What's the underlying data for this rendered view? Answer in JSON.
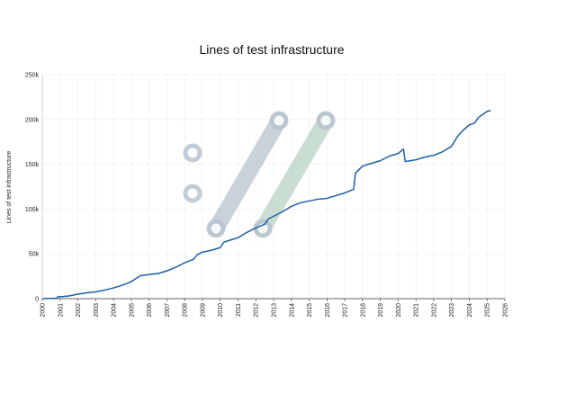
{
  "chart_data": {
    "type": "line",
    "title": "Lines of test infrastructure",
    "xlabel": "",
    "ylabel": "Lines of test infrastructure",
    "xlim": [
      2000,
      2026
    ],
    "ylim": [
      0,
      250000
    ],
    "grid": true,
    "x_ticks": [
      "2000",
      "2001",
      "2002",
      "2003",
      "2004",
      "2005",
      "2006",
      "2007",
      "2008",
      "2009",
      "2010",
      "2011",
      "2012",
      "2013",
      "2014",
      "2015",
      "2016",
      "2017",
      "2018",
      "2019",
      "2020",
      "2021",
      "2022",
      "2023",
      "2024",
      "2025",
      "2026"
    ],
    "y_ticks": [
      {
        "value": 0,
        "label": "0"
      },
      {
        "value": 50000,
        "label": "50k"
      },
      {
        "value": 100000,
        "label": "100k"
      },
      {
        "value": 150000,
        "label": "150k"
      },
      {
        "value": 200000,
        "label": "200k"
      },
      {
        "value": 250000,
        "label": "250k"
      }
    ],
    "series": [
      {
        "color": "#1f5fa8",
        "points": [
          [
            2000.0,
            0
          ],
          [
            2000.8,
            500
          ],
          [
            2000.9,
            2500
          ],
          [
            2001.0,
            2000
          ],
          [
            2001.5,
            3000
          ],
          [
            2002.0,
            5000
          ],
          [
            2002.5,
            6500
          ],
          [
            2003.0,
            7500
          ],
          [
            2003.5,
            9500
          ],
          [
            2004.0,
            12000
          ],
          [
            2004.5,
            15000
          ],
          [
            2005.0,
            19000
          ],
          [
            2005.3,
            23000
          ],
          [
            2005.5,
            25500
          ],
          [
            2006.0,
            27000
          ],
          [
            2006.5,
            28000
          ],
          [
            2007.0,
            31000
          ],
          [
            2007.5,
            35000
          ],
          [
            2008.0,
            40000
          ],
          [
            2008.5,
            44000
          ],
          [
            2008.7,
            49000
          ],
          [
            2009.0,
            52000
          ],
          [
            2009.5,
            54000
          ],
          [
            2010.0,
            57000
          ],
          [
            2010.2,
            63000
          ],
          [
            2010.5,
            65000
          ],
          [
            2011.0,
            68000
          ],
          [
            2011.5,
            74000
          ],
          [
            2012.0,
            79000
          ],
          [
            2012.5,
            83000
          ],
          [
            2012.7,
            89000
          ],
          [
            2013.0,
            92000
          ],
          [
            2013.5,
            97000
          ],
          [
            2014.0,
            103000
          ],
          [
            2014.5,
            107000
          ],
          [
            2015.0,
            109000
          ],
          [
            2015.5,
            111000
          ],
          [
            2016.0,
            112000
          ],
          [
            2016.5,
            115000
          ],
          [
            2017.0,
            118000
          ],
          [
            2017.5,
            122000
          ],
          [
            2017.6,
            140000
          ],
          [
            2018.0,
            148000
          ],
          [
            2018.5,
            151000
          ],
          [
            2019.0,
            154000
          ],
          [
            2019.5,
            159000
          ],
          [
            2020.0,
            162000
          ],
          [
            2020.3,
            167000
          ],
          [
            2020.4,
            153000
          ],
          [
            2020.7,
            154000
          ],
          [
            2021.0,
            155000
          ],
          [
            2021.5,
            158000
          ],
          [
            2022.0,
            160000
          ],
          [
            2022.5,
            164000
          ],
          [
            2023.0,
            170000
          ],
          [
            2023.3,
            180000
          ],
          [
            2023.6,
            187000
          ],
          [
            2024.0,
            194000
          ],
          [
            2024.3,
            196000
          ],
          [
            2024.5,
            202000
          ],
          [
            2025.0,
            209000
          ],
          [
            2025.2,
            210000
          ]
        ]
      }
    ],
    "decorations": {
      "ring_color": "#b7c4cf",
      "bar1_color": "#b7c4cf",
      "bar2_color": "#b9d2c4",
      "marker_color": "#d0dbe2"
    }
  }
}
